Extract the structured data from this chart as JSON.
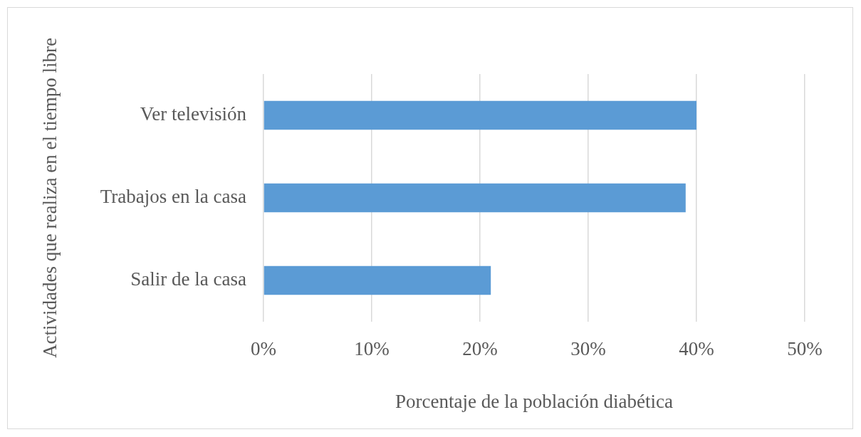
{
  "chart_data": {
    "type": "bar",
    "orientation": "horizontal",
    "xlabel": "Porcentaje de la población diabética",
    "ylabel": "Actividades que realiza en el tiempo libre",
    "categories": [
      "Ver televisión",
      "Trabajos en la casa",
      "Salir de la casa"
    ],
    "series": [
      {
        "color": "#5b9bd5",
        "values": [
          40,
          39,
          21
        ]
      }
    ],
    "xlim": [
      0,
      50
    ],
    "xticks": [
      {
        "value": 0,
        "label": "0%"
      },
      {
        "value": 10,
        "label": "10%"
      },
      {
        "value": 20,
        "label": "20%"
      },
      {
        "value": 30,
        "label": "30%"
      },
      {
        "value": 40,
        "label": "40%"
      },
      {
        "value": 50,
        "label": "50%"
      }
    ],
    "grid": "x",
    "legend": false
  }
}
